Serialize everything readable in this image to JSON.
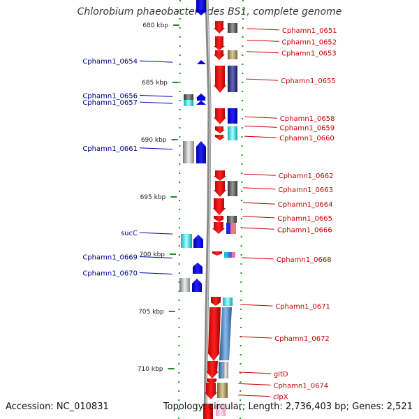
{
  "title": "Chlorobium phaeobacteroides BS1, complete genome",
  "accession": "Accession: NC_010831",
  "topology": "Topology: circular; Length: 2,736,403 bp; Genes: 2,521",
  "ticks": [
    {
      "label": "680 kbp",
      "kbp": 680
    },
    {
      "label": "685 kbp",
      "kbp": 685
    },
    {
      "label": "690 kbp",
      "kbp": 690
    },
    {
      "label": "695 kbp",
      "kbp": 695
    },
    {
      "label": "700 kbp",
      "kbp": 700
    },
    {
      "label": "705 kbp",
      "kbp": 705
    },
    {
      "label": "710 kbp",
      "kbp": 710
    }
  ],
  "left_genes": [
    {
      "label": "Cphamn1_0654",
      "kbp": 683.3
    },
    {
      "label": "Cphamn1_0656",
      "kbp": 686.3
    },
    {
      "label": "Cphamn1_0657",
      "kbp": 686.9
    },
    {
      "label": "Cphamn1_0661",
      "kbp": 690.9
    },
    {
      "label": "sucC",
      "kbp": 698.3
    },
    {
      "label": "Cphamn1_0669",
      "kbp": 700.4
    },
    {
      "label": "Cphamn1_0670",
      "kbp": 701.8
    }
  ],
  "right_genes": [
    {
      "label": "Cphamn1_0651",
      "kbp": 680.3
    },
    {
      "label": "Cphamn1_0652",
      "kbp": 681.3
    },
    {
      "label": "Cphamn1_0653",
      "kbp": 682.3
    },
    {
      "label": "Cphamn1_0655",
      "kbp": 684.7
    },
    {
      "label": "Cphamn1_0658",
      "kbp": 688.0
    },
    {
      "label": "Cphamn1_0659",
      "kbp": 688.8
    },
    {
      "label": "Cphamn1_0660",
      "kbp": 689.7
    },
    {
      "label": "Cphamn1_0662",
      "kbp": 693.0
    },
    {
      "label": "Cphamn1_0663",
      "kbp": 694.2
    },
    {
      "label": "Cphamn1_0664",
      "kbp": 695.5
    },
    {
      "label": "Cphamn1_0665",
      "kbp": 696.7
    },
    {
      "label": "Cphamn1_0666",
      "kbp": 697.7
    },
    {
      "label": "Cphamn1_0668",
      "kbp": 700.3
    },
    {
      "label": "Cphamn1_0671",
      "kbp": 704.4
    },
    {
      "label": "Cphamn1_0672",
      "kbp": 707.2
    },
    {
      "label": "gltD",
      "kbp": 710.3
    },
    {
      "label": "Cphamn1_0674",
      "kbp": 711.3
    },
    {
      "label": "clpX",
      "kbp": 712.3
    }
  ],
  "colors": {
    "forward_strand": "#ff0000",
    "reverse_strand": "#0000ff",
    "left_label": "#00008b",
    "right_label": "#cc0000",
    "tick": "#228b22",
    "genome_line": "#888888"
  }
}
